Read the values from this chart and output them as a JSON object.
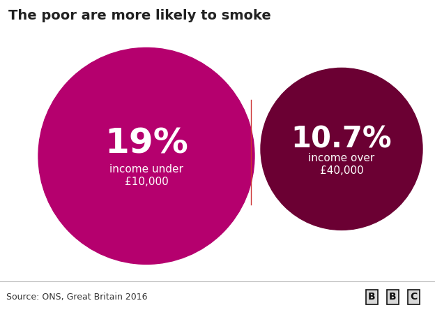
{
  "title": "The poor are more likely to smoke",
  "circle1_pct": "19%",
  "circle1_label": "income under\n£10,000",
  "circle1_color": "#b5006e",
  "circle2_pct": "10.7%",
  "circle2_label": "income over\n£40,000",
  "circle2_color": "#6b0033",
  "separator_color": "#cc3333",
  "source_text": "Source: ONS, Great Britain 2016",
  "bbc_text": "BBC",
  "bg_color": "#ffffff",
  "footer_bg": "#d8d8d8",
  "title_fontsize": 14,
  "pct_fontsize1": 36,
  "pct_fontsize2": 30,
  "label_fontsize": 11,
  "source_fontsize": 9
}
